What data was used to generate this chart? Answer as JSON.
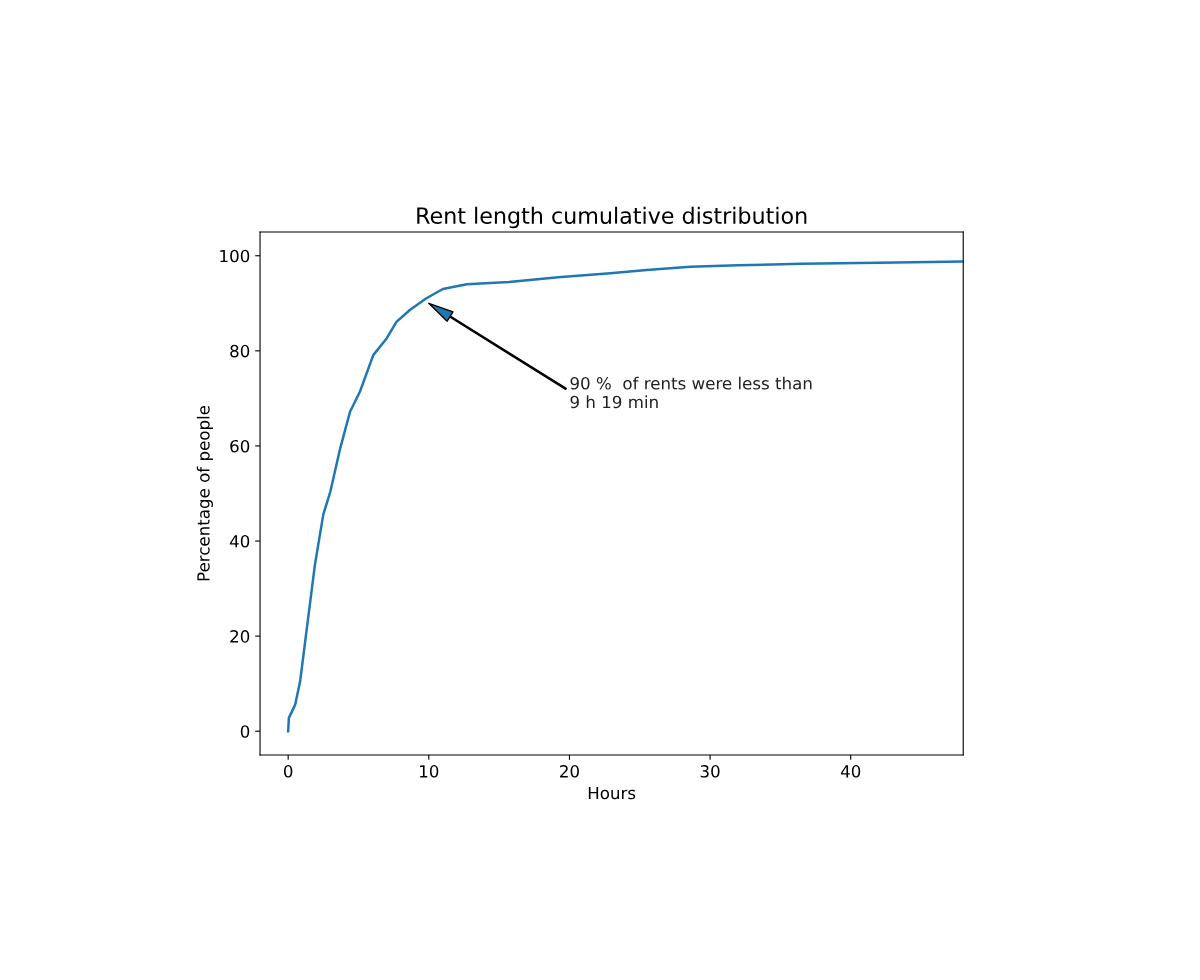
{
  "chart_data": {
    "type": "line",
    "title": "Rent length cumulative distribution",
    "xlabel": "Hours",
    "ylabel": "Percentage of people",
    "xlim": [
      -2,
      48
    ],
    "xticks": [
      0,
      10,
      20,
      30,
      40
    ],
    "ylim": [
      -5,
      105
    ],
    "yticks": [
      0,
      20,
      40,
      60,
      80,
      100
    ],
    "grid": false,
    "legend": false,
    "series": [
      {
        "color": "#1f77b4",
        "x": [
          0,
          0.05,
          0.5,
          0.85,
          1.3,
          1.9,
          2.5,
          3.0,
          3.7,
          4.4,
          5.1,
          6.05,
          7.0,
          7.7,
          8.65,
          9.8,
          11.0,
          12.7,
          15.7,
          19.2,
          22.9,
          25.5,
          28.6,
          32.0,
          36.5,
          42.0,
          48.0
        ],
        "values": [
          0,
          2.8,
          5.6,
          10.5,
          21,
          35,
          45.6,
          50.4,
          59.5,
          67.2,
          71.4,
          79.1,
          82.6,
          86.1,
          88.6,
          91.0,
          93.0,
          94.0,
          94.5,
          95.5,
          96.3,
          97.0,
          97.7,
          98.0,
          98.3,
          98.5,
          98.8
        ]
      }
    ],
    "annotations": [
      "90 %  of rents were less than\n9 h 19 min"
    ]
  }
}
